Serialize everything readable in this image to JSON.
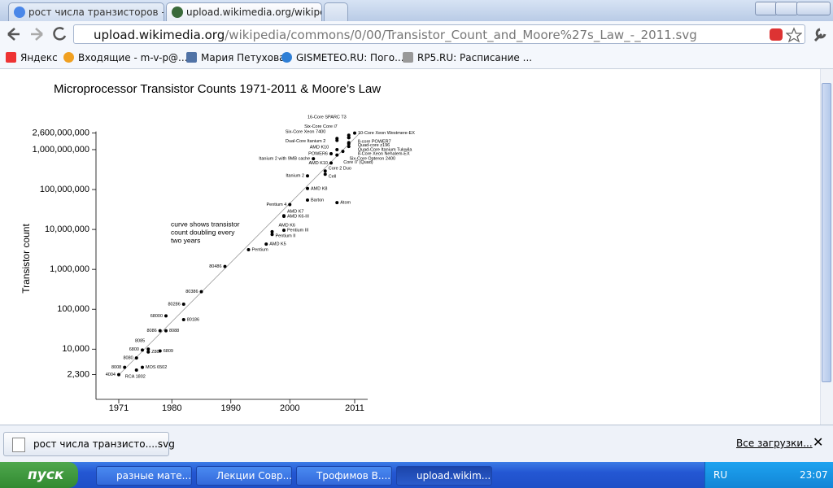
{
  "browser": {
    "tabs": [
      "рост числа транзисторов - П",
      "upload.wikimedia.org/wikipedia"
    ],
    "url_domain": "upload.wikimedia.org",
    "url_path": "/wikipedia/commons/0/00/Transistor_Count_and_Moore%27s_Law_-_2011.svg",
    "bookmarks": [
      "Яндекс",
      "Входящие - m-v-p@...",
      "Мария Петухова",
      "GISMETEO.RU: Пого...",
      "RP5.RU: Расписание ..."
    ],
    "download_file": "рост числа транзисто....svg",
    "all_downloads": "Все загрузки..."
  },
  "taskbar": {
    "start": "пуск",
    "windows": [
      "разные мате...",
      "Лекции Совр...",
      "Трофимов В....",
      "upload.wikim..."
    ],
    "language": "RU",
    "time": "23:07"
  },
  "chart_data": {
    "type": "scatter",
    "title": "Microprocessor Transistor Counts 1971-2011 & Moore’s Law",
    "y_label": "Transistor count",
    "annotation": [
      "curve shows transistor",
      "count doubling every",
      "two years"
    ],
    "log_y": true,
    "color": "#000000",
    "xlim": [
      1971,
      2011
    ],
    "xticks": [
      1971,
      1980,
      1990,
      2000,
      2011
    ],
    "ylim": [
      2300,
      2600000000
    ],
    "yticks": [
      {
        "value": 2300,
        "label": "2,300"
      },
      {
        "value": 10000,
        "label": "10,000"
      },
      {
        "value": 100000,
        "label": "100,000"
      },
      {
        "value": 1000000,
        "label": "1,000,000"
      },
      {
        "value": 10000000,
        "label": "10,000,000"
      },
      {
        "value": 100000000,
        "label": "100,000,000"
      },
      {
        "value": 1000000000,
        "label": "1,000,000,000"
      },
      {
        "value": 2600000000,
        "label": "2,600,000,000"
      }
    ],
    "point_labels": [
      "4004",
      "8008",
      "8080",
      "RCA 1802",
      "MOS 6502",
      "Z80",
      "6800",
      "8085",
      "6809",
      "8086",
      "8088",
      "68000",
      "80186",
      "80286",
      "80386",
      "80486",
      "Pentium",
      "AMD K5",
      "Pentium II",
      "AMD K6",
      "Pentium III",
      "AMD K6-III",
      "AMD K7",
      "Pentium 4",
      "Barton",
      "AMD K8",
      "Atom",
      "Itanium 2",
      "Cell",
      "Core 2 Duo",
      "AMD K10",
      "Itanium 2 with 9MB cache",
      "Core i7 (Quad)",
      "POWER6",
      "Six-Core Opteron 2400",
      "AMD K10",
      "Dual-Core Itanium 2",
      "Six-Core Xeon 7400",
      "Six-Core Core i7",
      "16-Core SPARC T3",
      "10-Core Xeon Westmere-EX",
      "8-core POWER7",
      "Quad-core z196",
      "Quad-Core Itanium Tukwila",
      "8-Core Xeon Nehalem-EX"
    ],
    "x": [
      1971,
      1972,
      1974,
      1974,
      1975,
      1976,
      1975,
      1976,
      1978,
      1978,
      1979,
      1979,
      1982,
      1982,
      1985,
      1989,
      1993,
      1996,
      1997,
      1997,
      1999,
      1999,
      1999,
      2000,
      2003,
      2003,
      2008,
      2003,
      2006,
      2006,
      2007,
      2004,
      2008,
      2007,
      2009,
      2008,
      2008,
      2008,
      2010,
      2010,
      2011,
      2010,
      2010,
      2010,
      2010
    ],
    "values": [
      2300,
      3500,
      6000,
      3000,
      3500,
      8500,
      9500,
      10000,
      9000,
      29000,
      29000,
      68000,
      55000,
      134000,
      275000,
      1180000,
      3100000,
      4300000,
      7500000,
      8800000,
      9500000,
      21300000,
      22000000,
      42000000,
      54300000,
      105900000,
      47000000,
      220000000,
      241000000,
      291000000,
      463000000,
      592000000,
      731000000,
      789000000,
      904000000,
      1000000000,
      1700000000,
      1900000000,
      1500000000,
      2000000000,
      2600000000,
      1200000000,
      1400000000,
      2000000000,
      2300000000
    ]
  }
}
